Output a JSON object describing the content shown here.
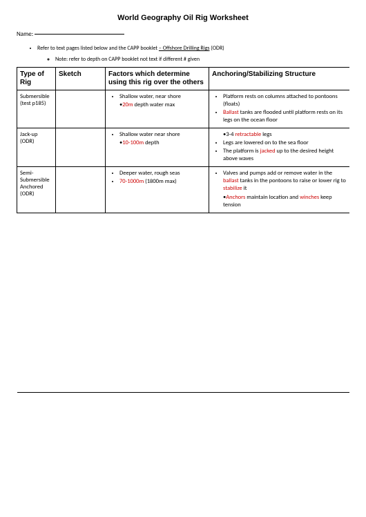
{
  "title": "World Geography Oil Rig Worksheet",
  "name_label": "Name:",
  "instruction_main_pre": "Refer to text pages listed below and the CAPP booklet ",
  "instruction_main_link": "– Offshore Drilling Rigs",
  "instruction_main_post": " (ODR)",
  "instruction_sub": "Note: refer to depth on CAPP booklet not text if different # given",
  "headers": {
    "type": "Type of Rig",
    "sketch": "Sketch",
    "factors": "Factors which determine using this rig over the others",
    "anchor": "Anchoring/Stabilizing Structure"
  },
  "rows": {
    "r1": {
      "type_l1": "Submersible",
      "type_l2": "(test p185)",
      "f1": "Shallow water, near shore",
      "f2a": "20m",
      "f2b": " depth water max",
      "a1": "Platform rests on columns attached to pontoons (floats)",
      "a2a": "Ballast",
      "a2b": " tanks are flooded until platform rests on its legs on the ocean floor"
    },
    "r2": {
      "type_l1": "Jack-up",
      "type_l2": "(ODR)",
      "f1": "Shallow water near shore",
      "f2a": "10-100m",
      "f2b": " depth",
      "a1a": "3-4 ",
      "a1b": "retractable",
      "a1c": " legs",
      "a2": "Legs are lowered on to the sea floor",
      "a3a": "The platform is ",
      "a3b": "jacked",
      "a3c": " up to the desired height above waves"
    },
    "r3": {
      "type_l1": "Semi-",
      "type_l2": "Submersible",
      "type_l3": "Anchored",
      "type_l4": "(ODR)",
      "f1": "Deeper water, rough seas",
      "f2a": "70-1000m",
      "f2b": " (1800m max)",
      "a1a": "Valves and pumps add or remove water in the ",
      "a1b": "ballast",
      "a1c": " tanks  in the pontoons to raise or lower rig to ",
      "a1d": "stabilize",
      "a1e": " it",
      "a2a": "Anchors",
      "a2b": " maintain location and ",
      "a2c": "winches",
      "a2d": " keep tension"
    }
  }
}
